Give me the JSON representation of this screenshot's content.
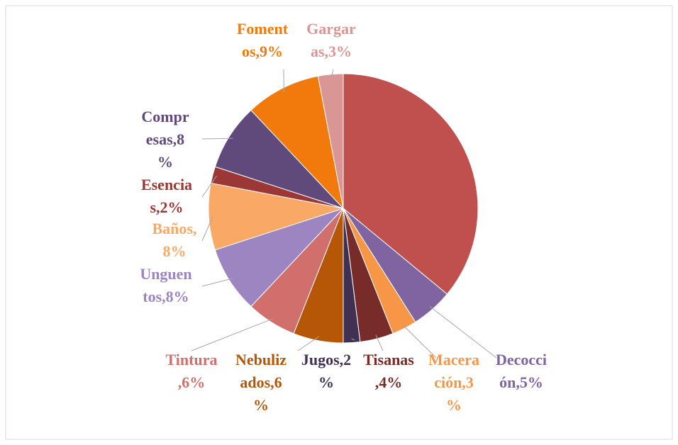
{
  "chart_data": {
    "type": "pie",
    "categories": [
      null,
      "Decocciones",
      "Maceración",
      "Tisanas",
      "Jugos",
      "Nebulizados",
      "Tintura",
      "Unguentos",
      "Baños",
      "Esencias",
      "Compresas",
      "Fomentos",
      "Gargaras"
    ],
    "values": [
      36,
      5,
      3,
      4,
      2,
      6,
      6,
      8,
      8,
      2,
      8,
      9,
      3
    ],
    "value_labels": [
      null,
      "Decocción,5%",
      "Maceración,3%",
      "Tisanas,4%",
      "Jugos,2%",
      "Nebulizados,6%",
      "Tintura,6%",
      "Unguentos,8%",
      "Baños,8%",
      "Esencias,2%",
      "Compresas,8%",
      "Fomentos,9%",
      "Gargaras,3%"
    ],
    "colors": [
      "#c0504d",
      "#8064a2",
      "#f79646",
      "#772c2a",
      "#403152",
      "#b65708",
      "#d06f6c",
      "#9c85c0",
      "#f9a965",
      "#9b3734",
      "#604a7b",
      "#f27a0c",
      "#d99694"
    ]
  }
}
